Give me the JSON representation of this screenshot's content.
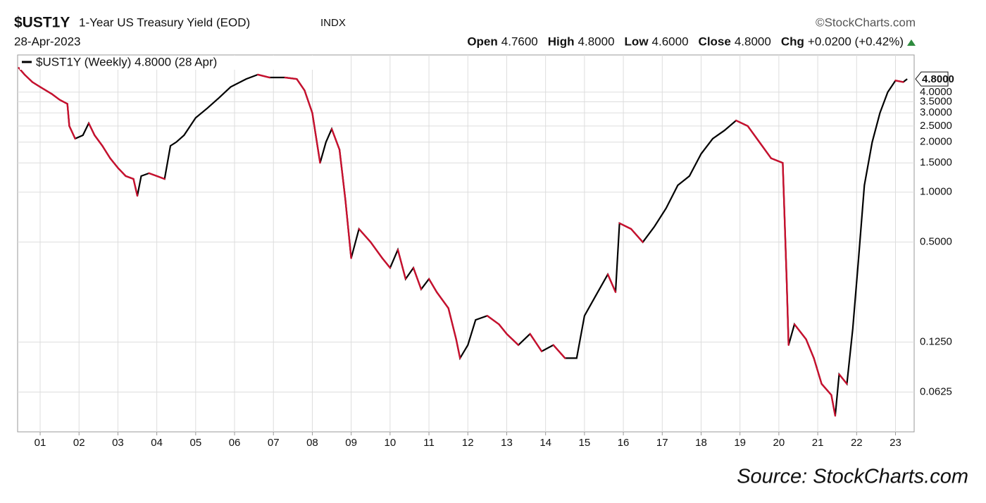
{
  "chart_data": {
    "type": "line",
    "title": "$UST1Y",
    "subtitle": "1-Year US Treasury Yield (EOD)",
    "exchange": "INDX",
    "credit": "©StockCharts.com",
    "date": "28-Apr-2023",
    "quote": [
      {
        "label": "Open",
        "value": "4.7600"
      },
      {
        "label": "High",
        "value": "4.8000"
      },
      {
        "label": "Low",
        "value": "4.6000"
      },
      {
        "label": "Close",
        "value": "4.8000"
      },
      {
        "label": "Chg",
        "value": "+0.0200 (+0.42%)"
      }
    ],
    "source": "Source: StockCharts.com",
    "last_value_label": "4.8000",
    "log_scale": true,
    "grid": true,
    "legend": "upper left",
    "up_color": "#000000",
    "down_color": "#c8102e",
    "xlim": [
      2000.42,
      2023.48
    ],
    "xticks": [
      {
        "value": 2001,
        "label": "01"
      },
      {
        "value": 2002,
        "label": "02"
      },
      {
        "value": 2003,
        "label": "03"
      },
      {
        "value": 2004,
        "label": "04"
      },
      {
        "value": 2005,
        "label": "05"
      },
      {
        "value": 2006,
        "label": "06"
      },
      {
        "value": 2007,
        "label": "07"
      },
      {
        "value": 2008,
        "label": "08"
      },
      {
        "value": 2009,
        "label": "09"
      },
      {
        "value": 2010,
        "label": "10"
      },
      {
        "value": 2011,
        "label": "11"
      },
      {
        "value": 2012,
        "label": "12"
      },
      {
        "value": 2013,
        "label": "13"
      },
      {
        "value": 2014,
        "label": "14"
      },
      {
        "value": 2015,
        "label": "15"
      },
      {
        "value": 2016,
        "label": "16"
      },
      {
        "value": 2017,
        "label": "17"
      },
      {
        "value": 2018,
        "label": "18"
      },
      {
        "value": 2019,
        "label": "19"
      },
      {
        "value": 2020,
        "label": "20"
      },
      {
        "value": 2021,
        "label": "21"
      },
      {
        "value": 2022,
        "label": "22"
      },
      {
        "value": 2023,
        "label": "23"
      }
    ],
    "ylim": [
      0.036,
      6.7
    ],
    "yticks": [
      {
        "value": 0.0625,
        "label": "0.0625"
      },
      {
        "value": 0.125,
        "label": "0.1250"
      },
      {
        "value": 0.5,
        "label": "0.5000"
      },
      {
        "value": 1,
        "label": "1.0000"
      },
      {
        "value": 1.5,
        "label": "1.5000"
      },
      {
        "value": 2,
        "label": "2.0000"
      },
      {
        "value": 2.5,
        "label": "2.5000"
      },
      {
        "value": 3,
        "label": "3.0000"
      },
      {
        "value": 3.5,
        "label": "3.5000"
      },
      {
        "value": 4,
        "label": "4.0000"
      }
    ],
    "x": [
      2000.45,
      2000.6,
      2000.8,
      2001.0,
      2001.3,
      2001.5,
      2001.7,
      2001.75,
      2001.9,
      2002.1,
      2002.25,
      2002.4,
      2002.6,
      2002.8,
      2003.0,
      2003.2,
      2003.4,
      2003.5,
      2003.6,
      2003.8,
      2004.0,
      2004.2,
      2004.35,
      2004.5,
      2004.7,
      2005.0,
      2005.3,
      2005.6,
      2005.9,
      2006.3,
      2006.6,
      2006.9,
      2007.3,
      2007.6,
      2007.8,
      2008.0,
      2008.2,
      2008.35,
      2008.5,
      2008.7,
      2008.85,
      2009.0,
      2009.2,
      2009.5,
      2009.8,
      2010.0,
      2010.2,
      2010.4,
      2010.6,
      2010.8,
      2011.0,
      2011.2,
      2011.5,
      2011.7,
      2011.8,
      2012.0,
      2012.2,
      2012.5,
      2012.8,
      2013.0,
      2013.3,
      2013.6,
      2013.9,
      2014.2,
      2014.5,
      2014.8,
      2015.0,
      2015.3,
      2015.6,
      2015.8,
      2015.9,
      2016.2,
      2016.5,
      2016.8,
      2017.1,
      2017.4,
      2017.7,
      2018.0,
      2018.3,
      2018.6,
      2018.9,
      2019.2,
      2019.5,
      2019.8,
      2020.1,
      2020.2,
      2020.25,
      2020.4,
      2020.7,
      2020.9,
      2021.1,
      2021.35,
      2021.45,
      2021.55,
      2021.75,
      2021.9,
      2022.05,
      2022.2,
      2022.4,
      2022.6,
      2022.8,
      2023.0,
      2023.2,
      2023.3
    ],
    "series": [
      {
        "name": "$UST1Y (Weekly) 4.8000 (28 Apr)",
        "color": "#000000",
        "values": [
          5.6,
          5.1,
          4.6,
          4.3,
          3.9,
          3.6,
          3.4,
          2.5,
          2.1,
          2.2,
          2.6,
          2.2,
          1.9,
          1.6,
          1.4,
          1.25,
          1.2,
          0.95,
          1.25,
          1.3,
          1.25,
          1.2,
          1.9,
          2.0,
          2.2,
          2.8,
          3.2,
          3.7,
          4.3,
          4.8,
          5.1,
          4.9,
          4.9,
          4.8,
          4.1,
          3.0,
          1.5,
          2.0,
          2.4,
          1.8,
          0.9,
          0.4,
          0.6,
          0.5,
          0.4,
          0.35,
          0.45,
          0.3,
          0.35,
          0.26,
          0.3,
          0.25,
          0.2,
          0.13,
          0.1,
          0.12,
          0.17,
          0.18,
          0.16,
          0.14,
          0.12,
          0.14,
          0.11,
          0.12,
          0.1,
          0.1,
          0.18,
          0.24,
          0.32,
          0.25,
          0.65,
          0.6,
          0.5,
          0.62,
          0.8,
          1.1,
          1.25,
          1.7,
          2.1,
          2.35,
          2.7,
          2.5,
          2.0,
          1.6,
          1.5,
          0.3,
          0.12,
          0.16,
          0.13,
          0.1,
          0.07,
          0.06,
          0.045,
          0.08,
          0.07,
          0.15,
          0.4,
          1.1,
          2.0,
          3.0,
          4.0,
          4.7,
          4.6,
          4.8
        ]
      }
    ]
  }
}
